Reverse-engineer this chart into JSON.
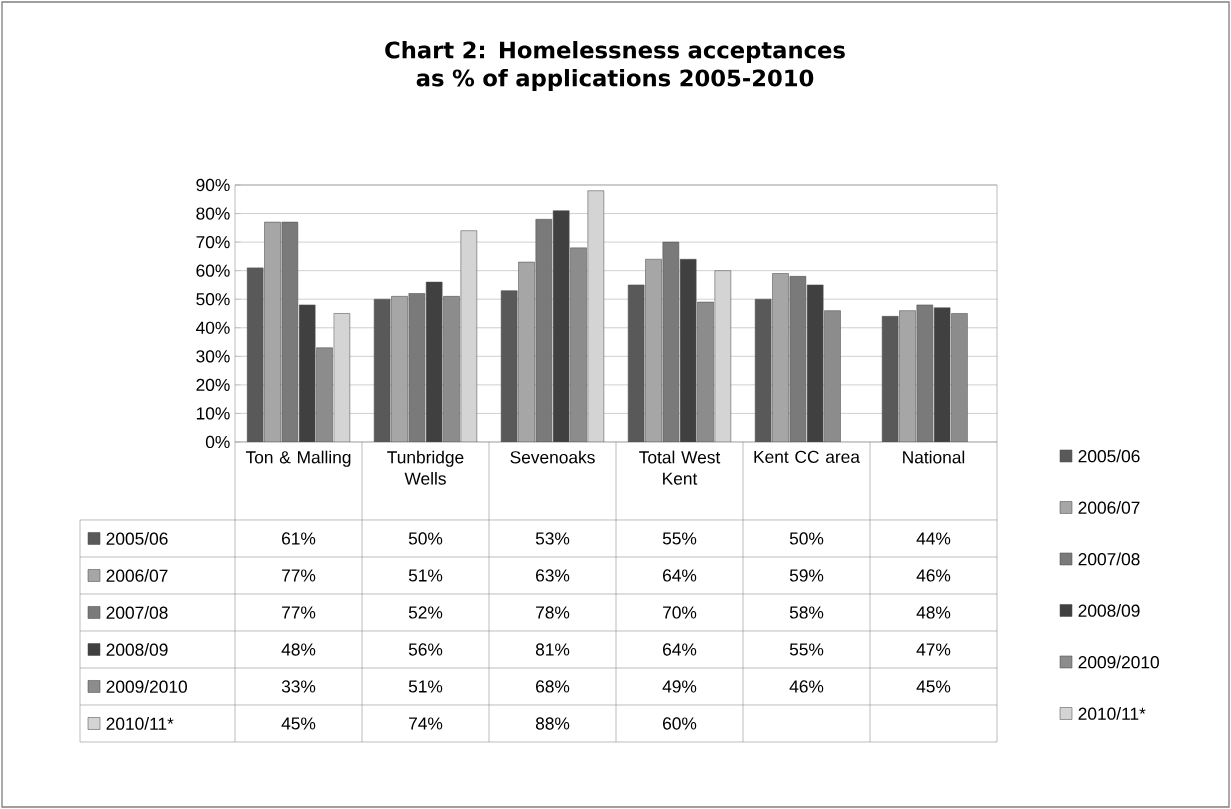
{
  "chart_data": {
    "type": "bar",
    "title": "Chart 2: Homelessness acceptances as % of applications 2005-2010",
    "categories": [
      "Ton & Malling",
      "Tunbridge Wells",
      "Sevenoaks",
      "Total West Kent",
      "Kent CC area",
      "National"
    ],
    "series": [
      {
        "name": "2005/06",
        "color": "#595959",
        "values": [
          61,
          50,
          53,
          55,
          50,
          44
        ],
        "value_labels": [
          "61%",
          "50%",
          "53%",
          "55%",
          "50%",
          "44%"
        ]
      },
      {
        "name": "2006/07",
        "color": "#a6a6a6",
        "values": [
          77,
          51,
          63,
          64,
          59,
          46
        ],
        "value_labels": [
          "77%",
          "51%",
          "63%",
          "64%",
          "59%",
          "46%"
        ]
      },
      {
        "name": "2007/08",
        "color": "#7a7a7a",
        "values": [
          77,
          52,
          78,
          70,
          58,
          48
        ],
        "value_labels": [
          "77%",
          "52%",
          "78%",
          "70%",
          "58%",
          "48%"
        ]
      },
      {
        "name": "2008/09",
        "color": "#404040",
        "values": [
          48,
          56,
          81,
          64,
          55,
          47
        ],
        "value_labels": [
          "48%",
          "56%",
          "81%",
          "64%",
          "55%",
          "47%"
        ]
      },
      {
        "name": "2009/2010",
        "color": "#8c8c8c",
        "values": [
          33,
          51,
          68,
          49,
          46,
          45
        ],
        "value_labels": [
          "33%",
          "51%",
          "68%",
          "49%",
          "46%",
          "45%"
        ]
      },
      {
        "name": "2010/11*",
        "color": "#d4d4d4",
        "values": [
          45,
          74,
          88,
          60,
          null,
          null
        ],
        "value_labels": [
          "45%",
          "74%",
          "88%",
          "60%",
          null,
          null
        ]
      }
    ],
    "ylim": [
      0,
      90
    ],
    "yticks": [
      {
        "value": 0,
        "label": "0%"
      },
      {
        "value": 10,
        "label": "10%"
      },
      {
        "value": 20,
        "label": "20%"
      },
      {
        "value": 30,
        "label": "30%"
      },
      {
        "value": 40,
        "label": "40%"
      },
      {
        "value": 50,
        "label": "50%"
      },
      {
        "value": 60,
        "label": "60%"
      },
      {
        "value": 70,
        "label": "70%"
      },
      {
        "value": 80,
        "label": "80%"
      },
      {
        "value": 90,
        "label": "90%"
      }
    ],
    "grid": "y",
    "legend": "right"
  }
}
